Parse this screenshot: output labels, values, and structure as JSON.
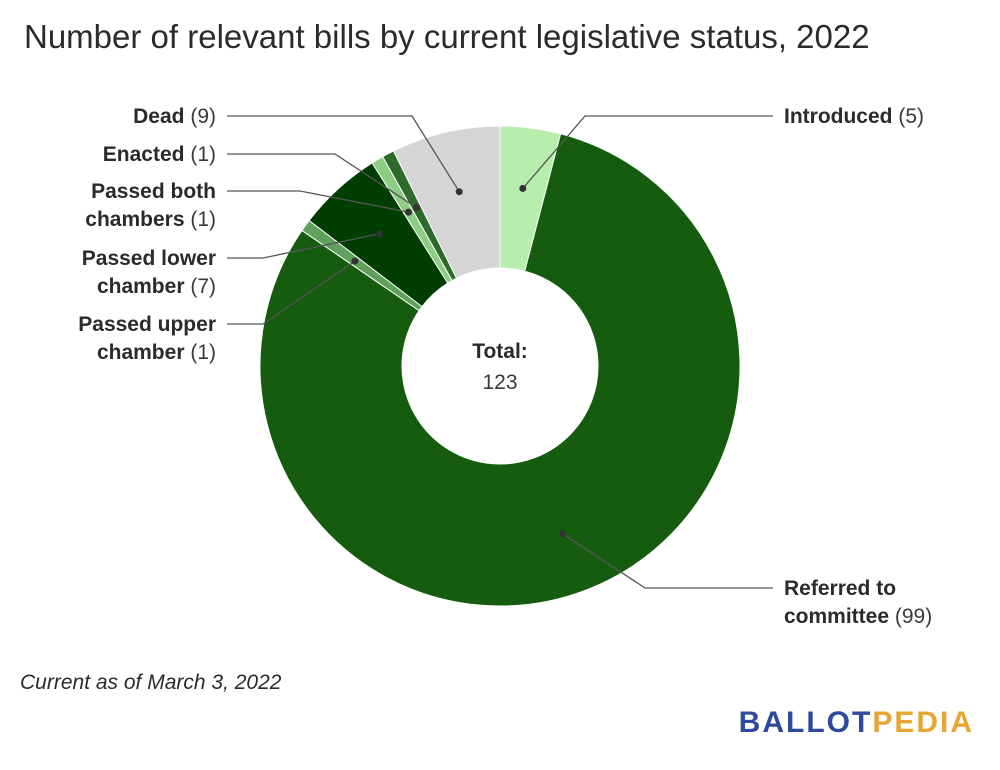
{
  "chart_data": {
    "type": "pie",
    "donut": true,
    "title": "Number of relevant bills by current legislative status, 2022",
    "center_label": "Total:",
    "center_value": "123",
    "slices": [
      {
        "name": "Introduced",
        "value": 5,
        "value_text": "(5)",
        "color": "#b7eeae"
      },
      {
        "name": "Referred to committee",
        "value": 99,
        "value_text": "(99)",
        "color": "#155c0e"
      },
      {
        "name": "Passed upper chamber",
        "value": 1,
        "value_text": "(1)",
        "color": "#5fa05a"
      },
      {
        "name": "Passed lower chamber",
        "value": 7,
        "value_text": "(7)",
        "color": "#003d00"
      },
      {
        "name": "Passed both chambers",
        "value": 1,
        "value_text": "(1)",
        "color": "#8ccd84"
      },
      {
        "name": "Enacted",
        "value": 1,
        "value_text": "(1)",
        "color": "#2e6b2a"
      },
      {
        "name": "Dead",
        "value": 9,
        "value_text": "(9)",
        "color": "#d5d5d5"
      }
    ]
  },
  "footnote": "Current as of March 3, 2022",
  "logo": {
    "part1": "BALLOT",
    "part2": "PEDIA"
  }
}
